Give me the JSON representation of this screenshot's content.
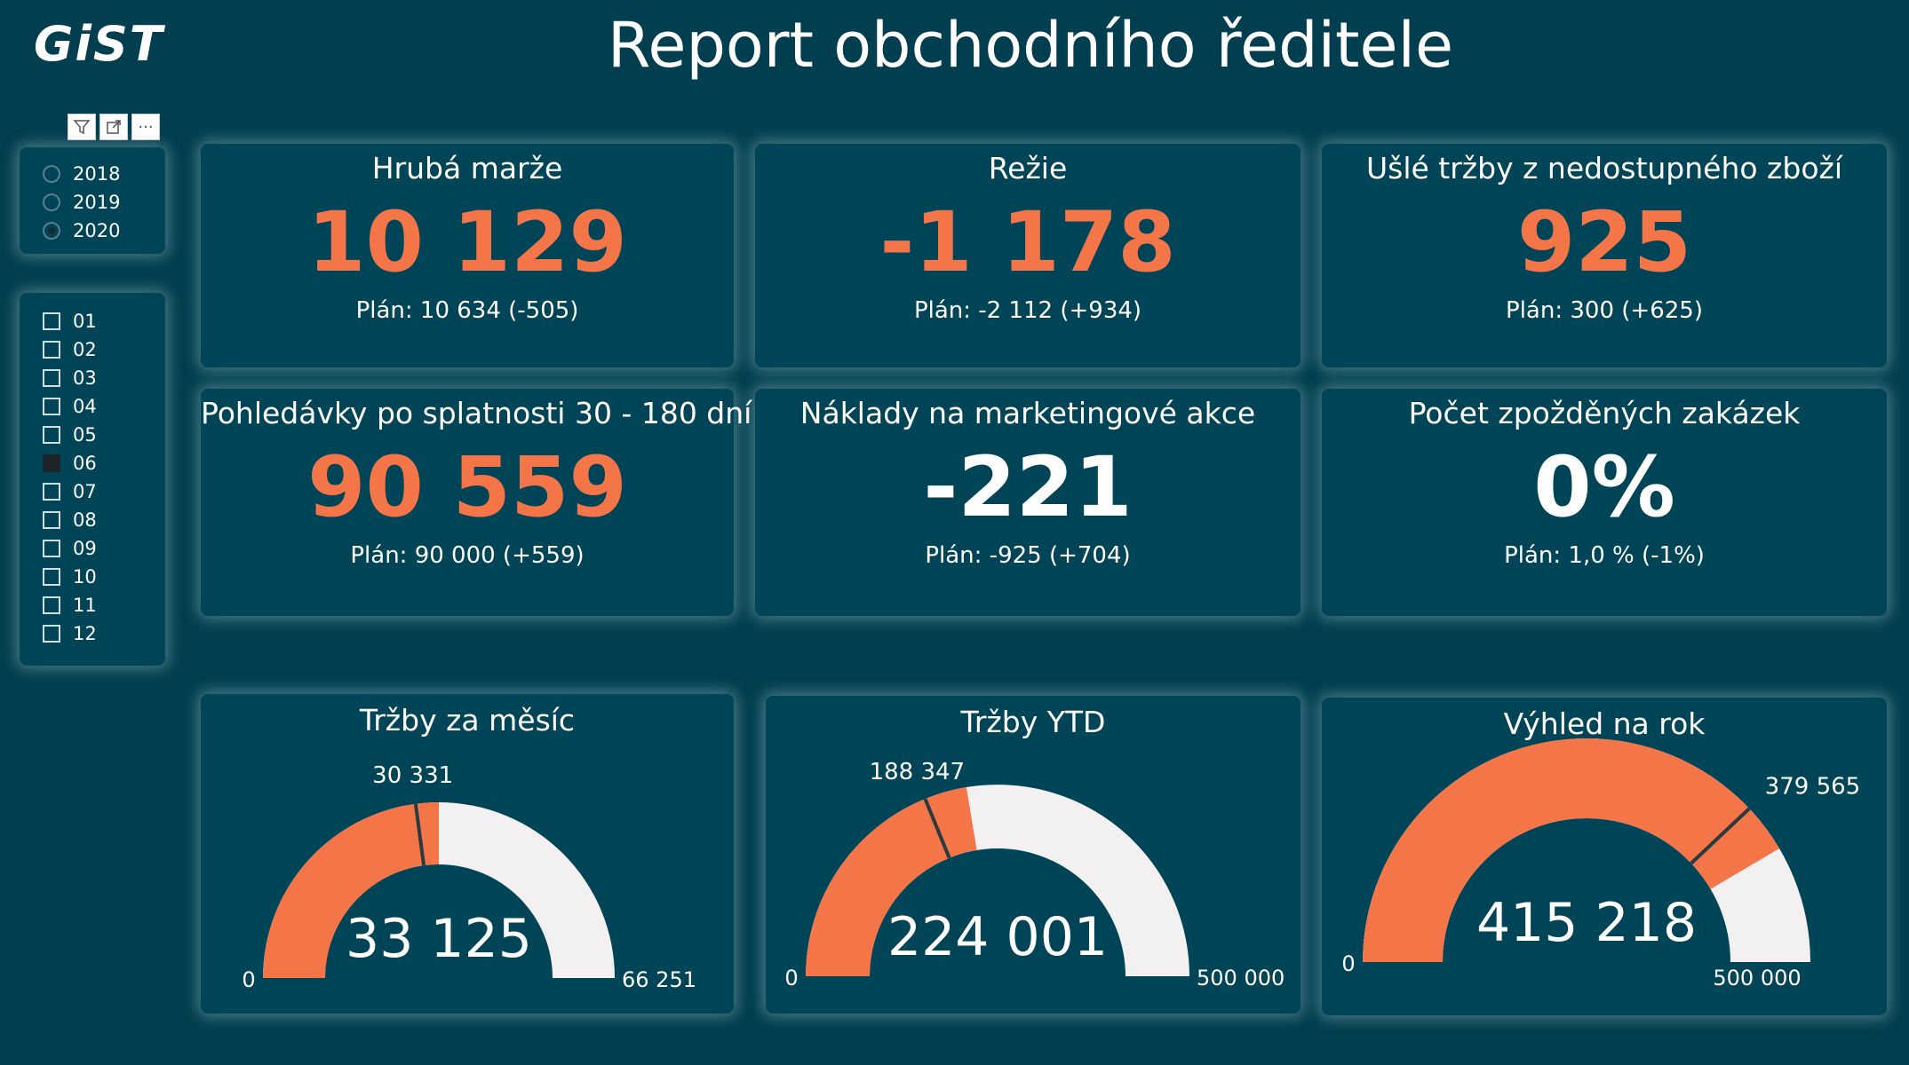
{
  "app": {
    "logo": "GiST",
    "title": "Report obchodního ředitele"
  },
  "toolbar": {
    "filter_icon": "filter-icon",
    "expand_icon": "expand-icon",
    "more_label": "···"
  },
  "years": [
    {
      "label": "2018",
      "selected": false
    },
    {
      "label": "2019",
      "selected": false
    },
    {
      "label": "2020",
      "selected": true
    }
  ],
  "months": [
    {
      "label": "01",
      "checked": false
    },
    {
      "label": "02",
      "checked": false
    },
    {
      "label": "03",
      "checked": false
    },
    {
      "label": "04",
      "checked": false
    },
    {
      "label": "05",
      "checked": false
    },
    {
      "label": "06",
      "checked": true
    },
    {
      "label": "07",
      "checked": false
    },
    {
      "label": "08",
      "checked": false
    },
    {
      "label": "09",
      "checked": false
    },
    {
      "label": "10",
      "checked": false
    },
    {
      "label": "11",
      "checked": false
    },
    {
      "label": "12",
      "checked": false
    }
  ],
  "kpis": [
    {
      "title": "Hrubá marže",
      "value": "10 129",
      "plan": "Plán: 10 634 (-505)",
      "color": "#f47548"
    },
    {
      "title": "Režie",
      "value": "-1 178",
      "plan": "Plán: -2 112 (+934)",
      "color": "#f47548"
    },
    {
      "title": "Ušlé tržby z nedostupného zboží",
      "value": "925",
      "plan": "Plán: 300 (+625)",
      "color": "#f47548"
    },
    {
      "title": "Pohledávky po splatnosti 30 - 180 dní",
      "value": "90 559",
      "plan": "Plán: 90 000 (+559)",
      "color": "#f47548"
    },
    {
      "title": "Náklady na marketingové akce",
      "value": "-221",
      "plan": "Plán: -925 (+704)",
      "color": "#ffffff"
    },
    {
      "title": "Počet zpožděných zakázek",
      "value": "0%",
      "plan": "Plán: 1,0 % (-1%)",
      "color": "#ffffff"
    }
  ],
  "colors": {
    "background": "#003e50",
    "panel": "#004458",
    "accent": "#f47548",
    "gauge_track": "#f2f0f0",
    "target_line": "#2b3a3e"
  },
  "gauges": [
    {
      "title": "Tržby za měsíc",
      "value": 33125,
      "value_label": "33 125",
      "min": 0,
      "min_label": "0",
      "max": 66251,
      "max_label": "66 251",
      "target": 30331,
      "target_label": "30 331"
    },
    {
      "title": "Tržby YTD",
      "value": 224001,
      "value_label": "224 001",
      "min": 0,
      "min_label": "0",
      "max": 500000,
      "max_label": "500 000",
      "target": 188347,
      "target_label": "188 347"
    },
    {
      "title": "Výhled na rok",
      "value": 415218,
      "value_label": "415 218",
      "min": 0,
      "min_label": "0",
      "max": 500000,
      "max_label": "500 000",
      "target": 379565,
      "target_label": "379 565"
    }
  ]
}
